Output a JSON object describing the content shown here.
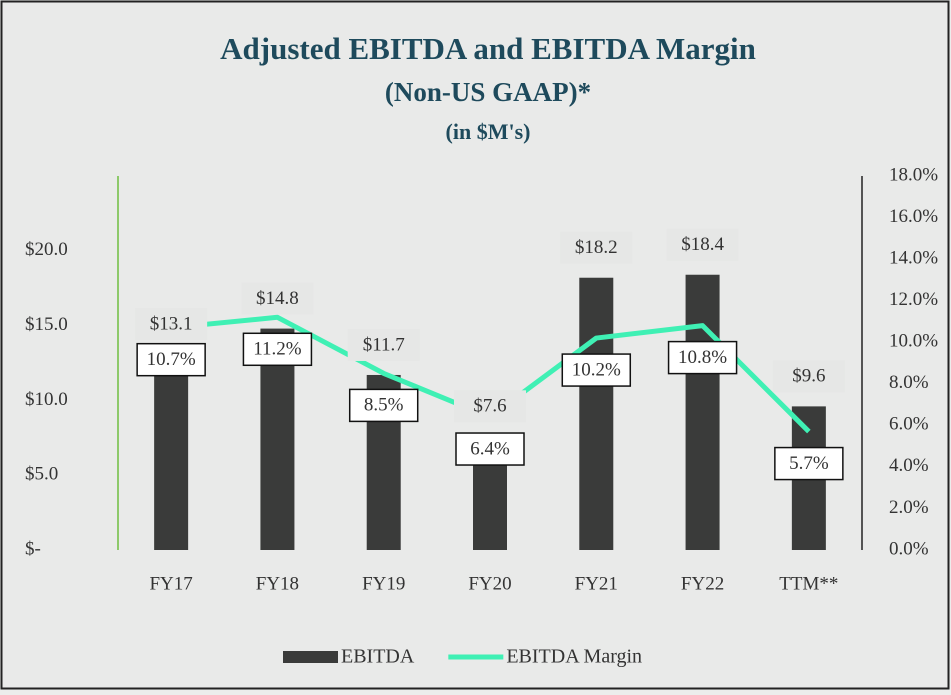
{
  "chart_data": {
    "type": "bar",
    "title": "Adjusted EBITDA and EBITDA Margin",
    "subtitle": "(Non-US GAAP)*",
    "units_note": "(in $M's)",
    "categories": [
      "FY17",
      "FY18",
      "FY19",
      "FY20",
      "FY21",
      "FY22",
      "TTM**"
    ],
    "series": [
      {
        "name": "EBITDA",
        "type": "bar",
        "color": "#3a3b3a",
        "values": [
          13.1,
          14.8,
          11.7,
          7.6,
          18.2,
          18.4,
          9.6
        ],
        "value_labels": [
          "$13.1",
          "$14.8",
          "$11.7",
          "$7.6",
          "$18.2",
          "$18.4",
          "$9.6"
        ]
      },
      {
        "name": "EBITDA Margin",
        "type": "line",
        "axis": "y2",
        "color": "#3ff0b4",
        "values": [
          10.7,
          11.2,
          8.5,
          6.4,
          10.2,
          10.8,
          5.7
        ],
        "value_labels": [
          "10.7%",
          "11.2%",
          "8.5%",
          "6.4%",
          "10.2%",
          "10.8%",
          "5.7%"
        ]
      }
    ],
    "ylim": [
      0,
      25
    ],
    "yticks": [
      {
        "value": 0,
        "label": "$-"
      },
      {
        "value": 5,
        "label": "$5.0"
      },
      {
        "value": 10,
        "label": "$10.0"
      },
      {
        "value": 15,
        "label": "$15.0"
      },
      {
        "value": 20,
        "label": "$20.0"
      }
    ],
    "y2lim": [
      0,
      18
    ],
    "y2ticks": [
      {
        "value": 0,
        "label": "0.0%"
      },
      {
        "value": 2,
        "label": "2.0%"
      },
      {
        "value": 4,
        "label": "4.0%"
      },
      {
        "value": 6,
        "label": "6.0%"
      },
      {
        "value": 8,
        "label": "8.0%"
      },
      {
        "value": 10,
        "label": "10.0%"
      },
      {
        "value": 12,
        "label": "12.0%"
      },
      {
        "value": 14,
        "label": "14.0%"
      },
      {
        "value": 16,
        "label": "16.0%"
      },
      {
        "value": 18,
        "label": "18.0%"
      }
    ],
    "legend": "bottom"
  }
}
